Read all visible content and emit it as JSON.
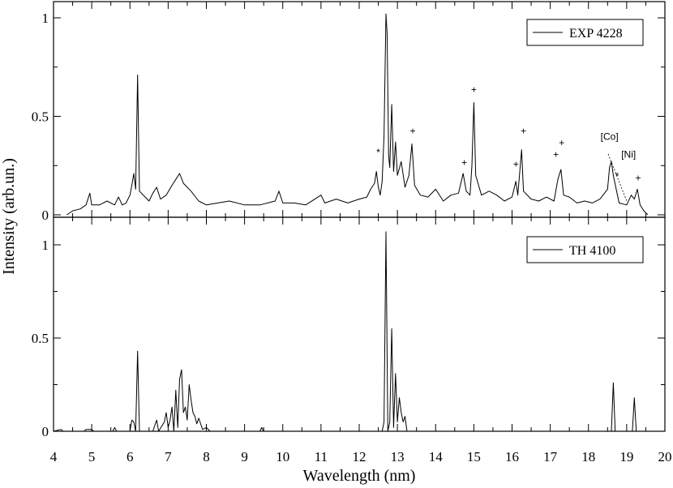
{
  "chart_data": {
    "type": "line",
    "xlabel": "Wavelength (nm)",
    "ylabel": "Intensity (arb.un.)",
    "xlim": [
      4,
      20
    ],
    "x_ticks": [
      "4",
      "5",
      "6",
      "7",
      "8",
      "9",
      "10",
      "11",
      "12",
      "13",
      "14",
      "15",
      "16",
      "17",
      "18",
      "19",
      "20"
    ],
    "panels": [
      {
        "name": "top",
        "ylim": [
          0,
          1.02
        ],
        "y_ticks": [
          "0",
          "0.5",
          "1"
        ],
        "series": [
          {
            "name": "EXP 4228",
            "color": "#000000",
            "points": [
              [
                4.35,
                0.0
              ],
              [
                4.5,
                0.02
              ],
              [
                4.7,
                0.03
              ],
              [
                4.85,
                0.05
              ],
              [
                4.95,
                0.11
              ],
              [
                5.0,
                0.05
              ],
              [
                5.2,
                0.05
              ],
              [
                5.4,
                0.07
              ],
              [
                5.6,
                0.05
              ],
              [
                5.7,
                0.09
              ],
              [
                5.8,
                0.05
              ],
              [
                5.9,
                0.06
              ],
              [
                6.0,
                0.1
              ],
              [
                6.05,
                0.15
              ],
              [
                6.1,
                0.21
              ],
              [
                6.15,
                0.13
              ],
              [
                6.2,
                0.71
              ],
              [
                6.25,
                0.12
              ],
              [
                6.4,
                0.09
              ],
              [
                6.5,
                0.07
              ],
              [
                6.6,
                0.11
              ],
              [
                6.7,
                0.14
              ],
              [
                6.8,
                0.08
              ],
              [
                6.95,
                0.1
              ],
              [
                7.1,
                0.15
              ],
              [
                7.2,
                0.18
              ],
              [
                7.3,
                0.21
              ],
              [
                7.4,
                0.16
              ],
              [
                7.5,
                0.14
              ],
              [
                7.6,
                0.12
              ],
              [
                7.8,
                0.07
              ],
              [
                8.0,
                0.05
              ],
              [
                8.3,
                0.06
              ],
              [
                8.6,
                0.07
              ],
              [
                9.0,
                0.05
              ],
              [
                9.4,
                0.05
              ],
              [
                9.8,
                0.07
              ],
              [
                9.9,
                0.12
              ],
              [
                10.0,
                0.06
              ],
              [
                10.3,
                0.06
              ],
              [
                10.6,
                0.05
              ],
              [
                11.0,
                0.1
              ],
              [
                11.1,
                0.06
              ],
              [
                11.4,
                0.08
              ],
              [
                11.7,
                0.06
              ],
              [
                12.0,
                0.08
              ],
              [
                12.2,
                0.09
              ],
              [
                12.3,
                0.13
              ],
              [
                12.4,
                0.16
              ],
              [
                12.45,
                0.22
              ],
              [
                12.5,
                0.14
              ],
              [
                12.55,
                0.1
              ],
              [
                12.6,
                0.17
              ],
              [
                12.65,
                0.4
              ],
              [
                12.7,
                1.02
              ],
              [
                12.73,
                0.92
              ],
              [
                12.77,
                0.3
              ],
              [
                12.8,
                0.24
              ],
              [
                12.85,
                0.56
              ],
              [
                12.9,
                0.22
              ],
              [
                12.95,
                0.37
              ],
              [
                13.0,
                0.2
              ],
              [
                13.1,
                0.27
              ],
              [
                13.2,
                0.14
              ],
              [
                13.3,
                0.2
              ],
              [
                13.38,
                0.36
              ],
              [
                13.45,
                0.15
              ],
              [
                13.6,
                0.1
              ],
              [
                13.8,
                0.09
              ],
              [
                14.0,
                0.13
              ],
              [
                14.2,
                0.07
              ],
              [
                14.4,
                0.1
              ],
              [
                14.6,
                0.11
              ],
              [
                14.72,
                0.21
              ],
              [
                14.8,
                0.12
              ],
              [
                14.9,
                0.1
              ],
              [
                14.95,
                0.25
              ],
              [
                15.0,
                0.57
              ],
              [
                15.05,
                0.2
              ],
              [
                15.2,
                0.1
              ],
              [
                15.4,
                0.12
              ],
              [
                15.6,
                0.1
              ],
              [
                15.8,
                0.07
              ],
              [
                16.0,
                0.09
              ],
              [
                16.1,
                0.17
              ],
              [
                16.15,
                0.1
              ],
              [
                16.25,
                0.33
              ],
              [
                16.3,
                0.12
              ],
              [
                16.5,
                0.08
              ],
              [
                16.7,
                0.07
              ],
              [
                16.9,
                0.09
              ],
              [
                17.1,
                0.07
              ],
              [
                17.2,
                0.18
              ],
              [
                17.28,
                0.23
              ],
              [
                17.35,
                0.1
              ],
              [
                17.5,
                0.09
              ],
              [
                17.7,
                0.06
              ],
              [
                17.9,
                0.07
              ],
              [
                18.1,
                0.06
              ],
              [
                18.3,
                0.08
              ],
              [
                18.5,
                0.13
              ],
              [
                18.55,
                0.24
              ],
              [
                18.6,
                0.27
              ],
              [
                18.65,
                0.2
              ],
              [
                18.8,
                0.06
              ],
              [
                19.0,
                0.05
              ],
              [
                19.12,
                0.1
              ],
              [
                19.2,
                0.08
              ],
              [
                19.28,
                0.13
              ],
              [
                19.35,
                0.05
              ],
              [
                19.45,
                0.02
              ],
              [
                19.55,
                0.0
              ]
            ]
          }
        ],
        "annotations": [
          {
            "text": "*",
            "x": 12.5,
            "y": 0.3
          },
          {
            "text": "+",
            "x": 13.4,
            "y": 0.41
          },
          {
            "text": "+",
            "x": 14.75,
            "y": 0.25
          },
          {
            "text": "+",
            "x": 15.0,
            "y": 0.62
          },
          {
            "text": "+",
            "x": 16.1,
            "y": 0.24
          },
          {
            "text": "+",
            "x": 16.3,
            "y": 0.41
          },
          {
            "text": "+",
            "x": 17.15,
            "y": 0.29
          },
          {
            "text": "+",
            "x": 17.3,
            "y": 0.35
          },
          {
            "text": "[Co]",
            "x": 18.55,
            "y": 0.38
          },
          {
            "text": "[Ni]",
            "x": 19.05,
            "y": 0.29
          },
          {
            "text": "*",
            "x": 18.75,
            "y": 0.18
          },
          {
            "text": "+",
            "x": 19.3,
            "y": 0.17
          }
        ]
      },
      {
        "name": "bottom",
        "ylim": [
          0,
          1.07
        ],
        "y_ticks": [
          "0",
          "0.5",
          "1"
        ],
        "series": [
          {
            "name": "TH 4100",
            "color": "#000000",
            "points": [
              [
                4.0,
                0.0
              ],
              [
                4.2,
                0.01
              ],
              [
                4.25,
                0.0
              ],
              [
                4.8,
                0.0
              ],
              [
                4.85,
                0.01
              ],
              [
                5.0,
                0.01
              ],
              [
                5.05,
                0.0
              ],
              [
                5.55,
                0.0
              ],
              [
                5.6,
                0.02
              ],
              [
                5.65,
                0.0
              ],
              [
                6.0,
                0.0
              ],
              [
                6.05,
                0.06
              ],
              [
                6.1,
                0.05
              ],
              [
                6.15,
                0.0
              ],
              [
                6.2,
                0.43
              ],
              [
                6.25,
                0.0
              ],
              [
                6.6,
                0.0
              ],
              [
                6.7,
                0.06
              ],
              [
                6.75,
                0.0
              ],
              [
                6.9,
                0.05
              ],
              [
                6.95,
                0.1
              ],
              [
                7.0,
                0.02
              ],
              [
                7.05,
                0.06
              ],
              [
                7.1,
                0.13
              ],
              [
                7.15,
                0.0
              ],
              [
                7.2,
                0.22
              ],
              [
                7.25,
                0.02
              ],
              [
                7.3,
                0.28
              ],
              [
                7.35,
                0.33
              ],
              [
                7.4,
                0.1
              ],
              [
                7.45,
                0.13
              ],
              [
                7.5,
                0.06
              ],
              [
                7.55,
                0.25
              ],
              [
                7.6,
                0.17
              ],
              [
                7.65,
                0.1
              ],
              [
                7.7,
                0.08
              ],
              [
                7.75,
                0.04
              ],
              [
                7.8,
                0.07
              ],
              [
                7.9,
                0.01
              ],
              [
                8.0,
                0.02
              ],
              [
                8.1,
                0.0
              ],
              [
                8.5,
                0.0
              ],
              [
                9.4,
                0.0
              ],
              [
                9.45,
                0.02
              ],
              [
                9.5,
                0.0
              ],
              [
                12.6,
                0.0
              ],
              [
                12.65,
                0.05
              ],
              [
                12.7,
                1.07
              ],
              [
                12.75,
                0.0
              ],
              [
                12.8,
                0.05
              ],
              [
                12.85,
                0.55
              ],
              [
                12.9,
                0.02
              ],
              [
                12.95,
                0.31
              ],
              [
                13.0,
                0.05
              ],
              [
                13.05,
                0.18
              ],
              [
                13.1,
                0.1
              ],
              [
                13.15,
                0.05
              ],
              [
                13.2,
                0.08
              ],
              [
                13.25,
                0.0
              ],
              [
                18.6,
                0.0
              ],
              [
                18.65,
                0.26
              ],
              [
                18.7,
                0.0
              ],
              [
                19.15,
                0.0
              ],
              [
                19.2,
                0.18
              ],
              [
                19.25,
                0.0
              ],
              [
                20.0,
                0.0
              ]
            ]
          }
        ],
        "annotations": []
      }
    ]
  }
}
